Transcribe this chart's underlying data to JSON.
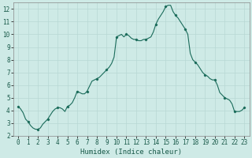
{
  "xlabel": "Humidex (Indice chaleur)",
  "ylabel": "",
  "xlim": [
    -0.5,
    23.5
  ],
  "ylim": [
    2,
    12.5
  ],
  "xticks": [
    0,
    1,
    2,
    3,
    4,
    5,
    6,
    7,
    8,
    9,
    10,
    11,
    12,
    13,
    14,
    15,
    16,
    17,
    18,
    19,
    20,
    21,
    22,
    23
  ],
  "yticks": [
    2,
    3,
    4,
    5,
    6,
    7,
    8,
    9,
    10,
    11,
    12
  ],
  "bg_color": "#ceeae6",
  "grid_color": "#b8d8d4",
  "line_color": "#1a6b5a",
  "x": [
    0,
    0.25,
    0.5,
    0.75,
    1.0,
    1.25,
    1.5,
    1.75,
    2.0,
    2.25,
    2.5,
    2.75,
    3.0,
    3.25,
    3.5,
    3.75,
    4.0,
    4.25,
    4.5,
    4.75,
    5.0,
    5.25,
    5.5,
    5.75,
    6.0,
    6.25,
    6.5,
    6.75,
    7.0,
    7.25,
    7.5,
    7.75,
    8.0,
    8.25,
    8.5,
    8.75,
    9.0,
    9.25,
    9.5,
    9.75,
    10.0,
    10.25,
    10.5,
    10.75,
    11.0,
    11.25,
    11.5,
    11.75,
    12.0,
    12.25,
    12.5,
    12.75,
    13.0,
    13.25,
    13.5,
    13.75,
    14.0,
    14.25,
    14.5,
    14.75,
    15.0,
    15.25,
    15.5,
    15.75,
    16.0,
    16.25,
    16.5,
    16.75,
    17.0,
    17.25,
    17.5,
    17.75,
    18.0,
    18.25,
    18.5,
    18.75,
    19.0,
    19.25,
    19.5,
    19.75,
    20.0,
    20.25,
    20.5,
    20.75,
    21.0,
    21.25,
    21.5,
    21.75,
    22.0,
    22.25,
    22.5,
    22.75,
    23.0
  ],
  "y": [
    4.3,
    4.1,
    3.8,
    3.3,
    3.1,
    2.8,
    2.6,
    2.5,
    2.5,
    2.6,
    2.9,
    3.1,
    3.3,
    3.6,
    3.9,
    4.1,
    4.2,
    4.2,
    4.1,
    3.9,
    4.3,
    4.4,
    4.6,
    5.0,
    5.5,
    5.4,
    5.3,
    5.3,
    5.5,
    5.9,
    6.3,
    6.4,
    6.5,
    6.6,
    6.8,
    7.0,
    7.2,
    7.4,
    7.7,
    8.2,
    9.8,
    9.9,
    10.0,
    9.8,
    10.0,
    9.9,
    9.7,
    9.6,
    9.6,
    9.5,
    9.5,
    9.6,
    9.6,
    9.7,
    9.8,
    10.2,
    10.8,
    11.2,
    11.5,
    11.8,
    12.2,
    12.3,
    12.3,
    11.8,
    11.5,
    11.3,
    11.0,
    10.7,
    10.4,
    10.0,
    8.5,
    8.0,
    7.8,
    7.6,
    7.3,
    7.0,
    6.8,
    6.7,
    6.5,
    6.4,
    6.4,
    6.0,
    5.4,
    5.2,
    5.0,
    4.9,
    4.8,
    4.5,
    3.9,
    3.9,
    3.9,
    4.0,
    4.2
  ]
}
